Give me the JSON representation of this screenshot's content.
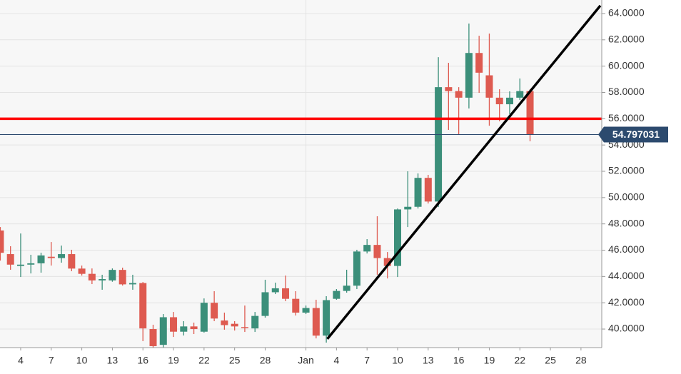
{
  "chart_data": {
    "type": "candlestick",
    "x": [
      2,
      3,
      4,
      5,
      6,
      7,
      8,
      9,
      10,
      11,
      12,
      13,
      14,
      15,
      16,
      17,
      18,
      19,
      20,
      21,
      22,
      23,
      24,
      25,
      26,
      27,
      28,
      29,
      30,
      31,
      32,
      33,
      34,
      35,
      36,
      37,
      38,
      39,
      40,
      41,
      42,
      43,
      44,
      45,
      46,
      47,
      48,
      49,
      50,
      51,
      52,
      53,
      54
    ],
    "open": [
      47.5,
      45.7,
      44.8,
      44.9,
      45.0,
      45.5,
      45.4,
      45.7,
      44.6,
      44.2,
      43.7,
      43.7,
      44.5,
      43.4,
      43.5,
      40.0,
      38.8,
      40.9,
      39.8,
      40.2,
      39.8,
      42.0,
      40.65,
      40.4,
      40.15,
      40.05,
      41.0,
      42.8,
      43.1,
      42.3,
      41.25,
      41.6,
      39.5,
      42.3,
      42.9,
      43.3,
      45.9,
      46.4,
      45.4,
      44.8,
      49.1,
      49.3,
      51.5,
      49.7,
      58.4,
      58.1,
      57.6,
      61.0,
      59.3,
      57.6,
      57.1,
      57.6,
      58.1
    ],
    "high": [
      47.76,
      46.3,
      47.27,
      45.65,
      45.81,
      46.62,
      46.35,
      46.03,
      44.83,
      44.61,
      44.13,
      44.61,
      44.67,
      44.13,
      43.58,
      40.33,
      41.14,
      41.3,
      40.6,
      40.49,
      42.33,
      42.88,
      41.25,
      40.6,
      41.79,
      41.3,
      43.75,
      43.53,
      44.07,
      42.88,
      41.79,
      42.23,
      42.5,
      43.04,
      44.51,
      46.03,
      46.84,
      48.58,
      45.86,
      49.17,
      52.0,
      51.84,
      51.73,
      60.68,
      60.25,
      58.4,
      63.24,
      62.31,
      62.48,
      58.24,
      58.08,
      59.06,
      58.24
    ],
    "low": [
      45.21,
      44.51,
      43.96,
      44.23,
      44.29,
      44.83,
      45.05,
      44.4,
      44.07,
      43.42,
      42.99,
      43.6,
      43.31,
      42.99,
      39.08,
      38.3,
      38.43,
      39.4,
      39.51,
      39.62,
      39.73,
      40.6,
      39.95,
      39.89,
      39.78,
      39.78,
      40.87,
      42.66,
      42.12,
      41.03,
      41.14,
      39.29,
      38.97,
      42.23,
      42.77,
      43.04,
      45.75,
      44.13,
      43.85,
      43.96,
      47.76,
      49.17,
      49.55,
      49.28,
      55.15,
      54.82,
      56.78,
      57.97,
      55.47,
      55.8,
      56.34,
      57.43,
      54.28
    ],
    "close": [
      45.8,
      44.9,
      44.9,
      45.0,
      45.6,
      45.4,
      45.7,
      44.6,
      44.2,
      43.7,
      43.8,
      44.5,
      43.4,
      43.5,
      40.05,
      38.7,
      40.9,
      39.8,
      40.2,
      40.0,
      42.0,
      40.8,
      40.3,
      40.2,
      40.1,
      41.0,
      42.8,
      43.1,
      42.3,
      41.25,
      41.6,
      39.5,
      42.2,
      42.9,
      43.3,
      45.9,
      46.4,
      45.4,
      44.8,
      49.1,
      49.3,
      51.5,
      49.7,
      58.4,
      58.1,
      57.6,
      61.0,
      59.5,
      57.6,
      57.1,
      57.6,
      58.1,
      54.797031
    ],
    "up_color": "#3b8f7a",
    "down_color": "#de5a50",
    "xlim": [
      1.97,
      61.04
    ],
    "xticks": [
      4,
      7,
      10,
      13,
      16,
      19,
      22,
      25,
      28,
      {
        "value": 32,
        "label": "Jan"
      },
      {
        "value": 35,
        "label": "4"
      },
      {
        "value": 38,
        "label": "7"
      },
      {
        "value": 41,
        "label": "10"
      },
      {
        "value": 44,
        "label": "13"
      },
      {
        "value": 47,
        "label": "16"
      },
      {
        "value": 50,
        "label": "19"
      },
      {
        "value": 53,
        "label": "22"
      },
      {
        "value": 56,
        "label": "25"
      },
      {
        "value": 59,
        "label": "28"
      }
    ],
    "ylim": [
      38.59,
      65.03
    ],
    "yticks": [
      {
        "value": 40,
        "label": "40.0000"
      },
      {
        "value": 42,
        "label": "42.0000"
      },
      {
        "value": 44,
        "label": "44.0000"
      },
      {
        "value": 46,
        "label": "46.0000"
      },
      {
        "value": 48,
        "label": "48.0000"
      },
      {
        "value": 50,
        "label": "50.0000"
      },
      {
        "value": 52,
        "label": "52.0000"
      },
      {
        "value": 54,
        "label": "54.0000"
      },
      {
        "value": 56,
        "label": "56.0000"
      },
      {
        "value": 58,
        "label": "58.0000"
      },
      {
        "value": 60,
        "label": "60.0000"
      },
      {
        "value": 62,
        "label": "62.0000"
      },
      {
        "value": 64,
        "label": "64.0000"
      }
    ],
    "grid": true,
    "hline": {
      "value": 56,
      "color": "#ff0000"
    },
    "last_price": 54.797031,
    "last_price_color": "#2c4a6e",
    "trendline": {
      "x": [
        34.1,
        60.9
      ],
      "y": [
        39.25,
        64.6
      ],
      "color": "#000000"
    }
  }
}
